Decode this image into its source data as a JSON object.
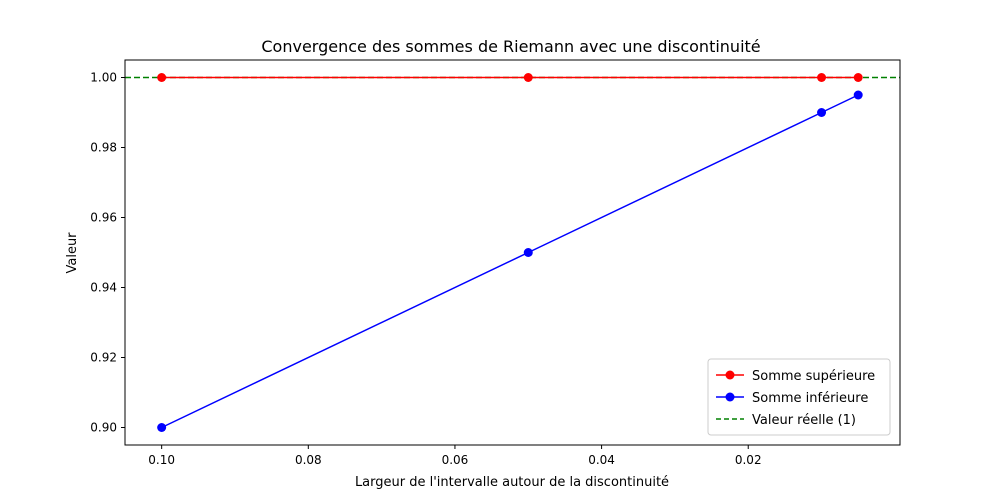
{
  "chart_data": {
    "type": "line",
    "title": "Convergence des sommes de Riemann avec une discontinuité",
    "xlabel": "Largeur de l'intervalle autour de la discontinuité",
    "ylabel": "Valeur",
    "x_inverted": true,
    "xlim": [
      0.105,
      -0.0007
    ],
    "ylim": [
      0.895,
      1.005
    ],
    "xticks": [
      0.1,
      0.08,
      0.06,
      0.04,
      0.02
    ],
    "xtick_labels": [
      "0.10",
      "0.08",
      "0.06",
      "0.04",
      "0.02"
    ],
    "yticks": [
      0.9,
      0.92,
      0.94,
      0.96,
      0.98,
      1.0
    ],
    "ytick_labels": [
      "0.90",
      "0.92",
      "0.94",
      "0.96",
      "0.98",
      "1.00"
    ],
    "grid": false,
    "legend_position": "bottom-right",
    "x": [
      0.1,
      0.05,
      0.01,
      0.005
    ],
    "series": [
      {
        "name": "Somme supérieure",
        "color": "#ff0000",
        "marker": "circle",
        "style": "solid",
        "values": [
          1.0,
          1.0,
          1.0,
          1.0
        ]
      },
      {
        "name": "Somme inférieure",
        "color": "#0000ff",
        "marker": "circle",
        "style": "solid",
        "values": [
          0.9,
          0.95,
          0.99,
          0.995
        ]
      }
    ],
    "reference_lines": [
      {
        "name": "Valeur réelle (1)",
        "color": "#008000",
        "style": "dashed",
        "y": 1.0
      }
    ]
  }
}
